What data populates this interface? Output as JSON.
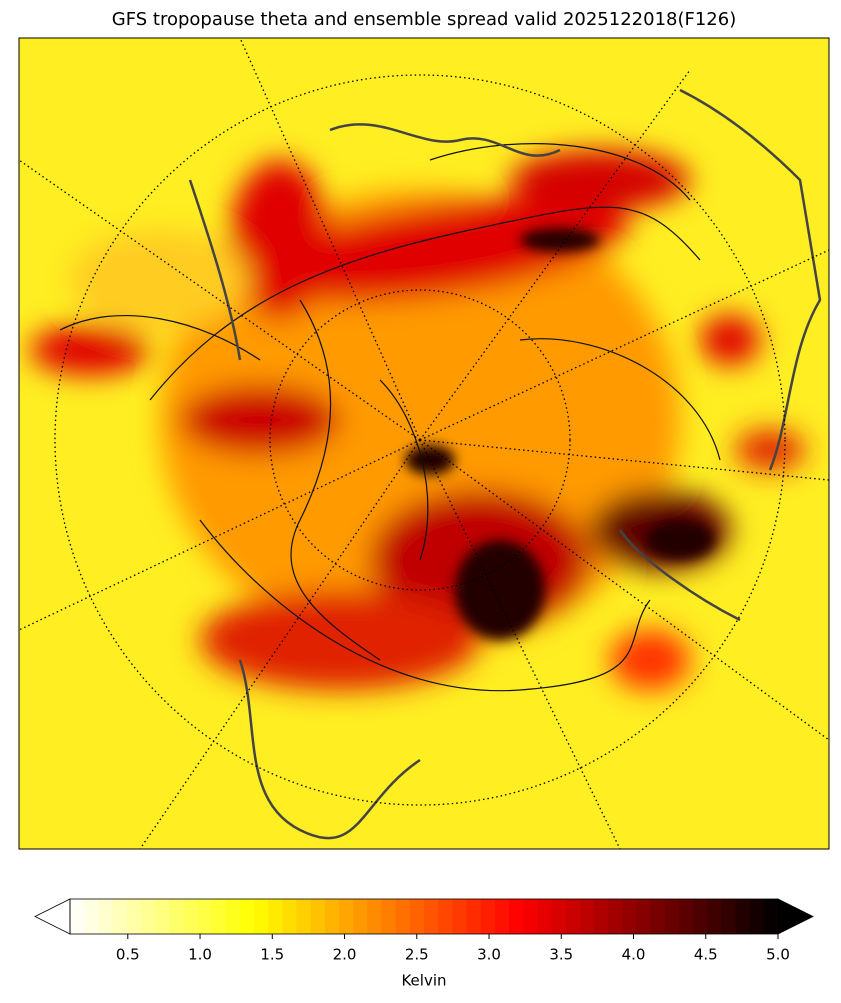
{
  "map": {
    "title": "GFS tropopause theta and ensemble spread valid 2025122018(F126)",
    "colorbar": {
      "label": "Kelvin",
      "range": [
        0.1,
        5.0
      ],
      "extend": "both",
      "ticks": [
        0.5,
        {
          "value": 1,
          "label": "1.0"
        },
        1.5,
        {
          "value": 2,
          "label": "2.0"
        },
        2.5,
        {
          "value": 3,
          "label": "3.0"
        },
        3.5,
        {
          "value": 4,
          "label": "4.0"
        },
        4.5,
        {
          "value": 5,
          "label": "5.0"
        }
      ]
    }
  }
}
